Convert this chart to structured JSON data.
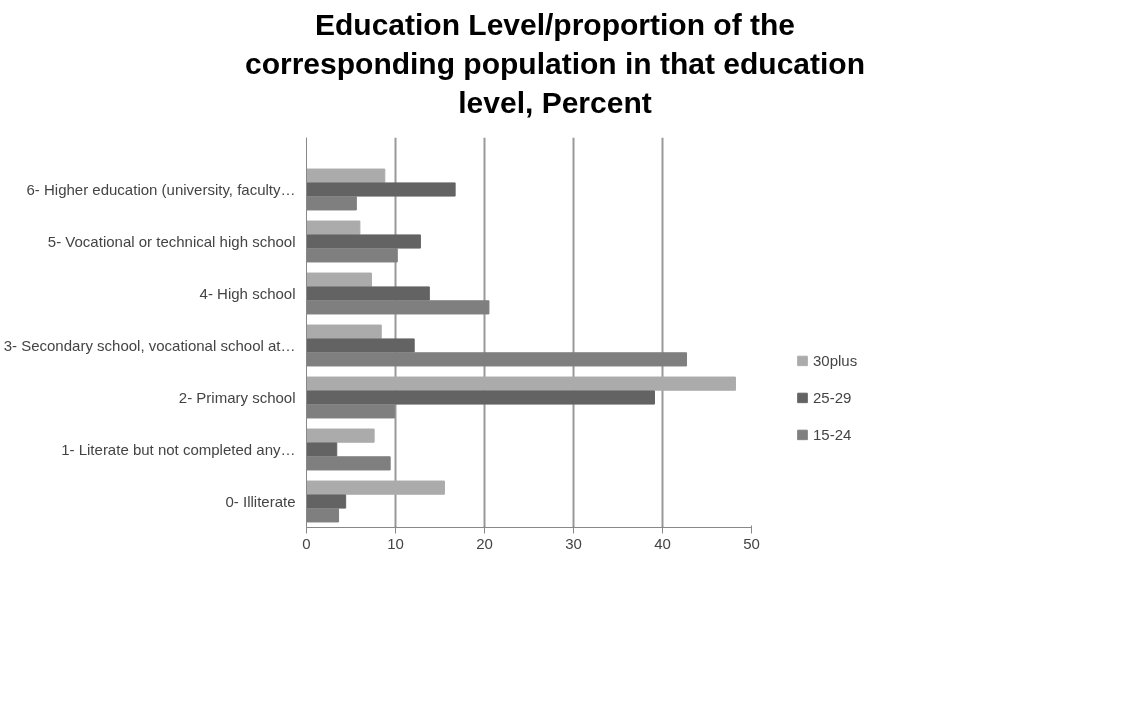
{
  "chart_data": {
    "type": "bar",
    "orientation": "horizontal",
    "title": "Education Level/proportion of the corresponding population in that education level, Percent",
    "categories": [
      "6- Higher education (university, faculty…",
      "5- Vocational or technical high school",
      "4- High school",
      "3- Secondary school, vocational school at…",
      "2- Primary school",
      "1- Literate but not completed any…",
      "0- Illiterate"
    ],
    "series": [
      {
        "name": "30plus",
        "color": "#ababab",
        "values": [
          8.8,
          6.0,
          7.3,
          8.4,
          48.2,
          7.6,
          15.5
        ]
      },
      {
        "name": "25-29",
        "color": "#636363",
        "values": [
          16.7,
          12.8,
          13.8,
          12.1,
          39.1,
          3.4,
          4.4
        ]
      },
      {
        "name": "15-24",
        "color": "#7f7f7f",
        "values": [
          5.6,
          10.2,
          20.5,
          42.7,
          9.9,
          9.4,
          3.6
        ]
      }
    ],
    "xlim": [
      0,
      50
    ],
    "xticks": [
      0,
      10,
      20,
      30,
      40,
      50
    ],
    "grid": "x",
    "legend": "right"
  }
}
